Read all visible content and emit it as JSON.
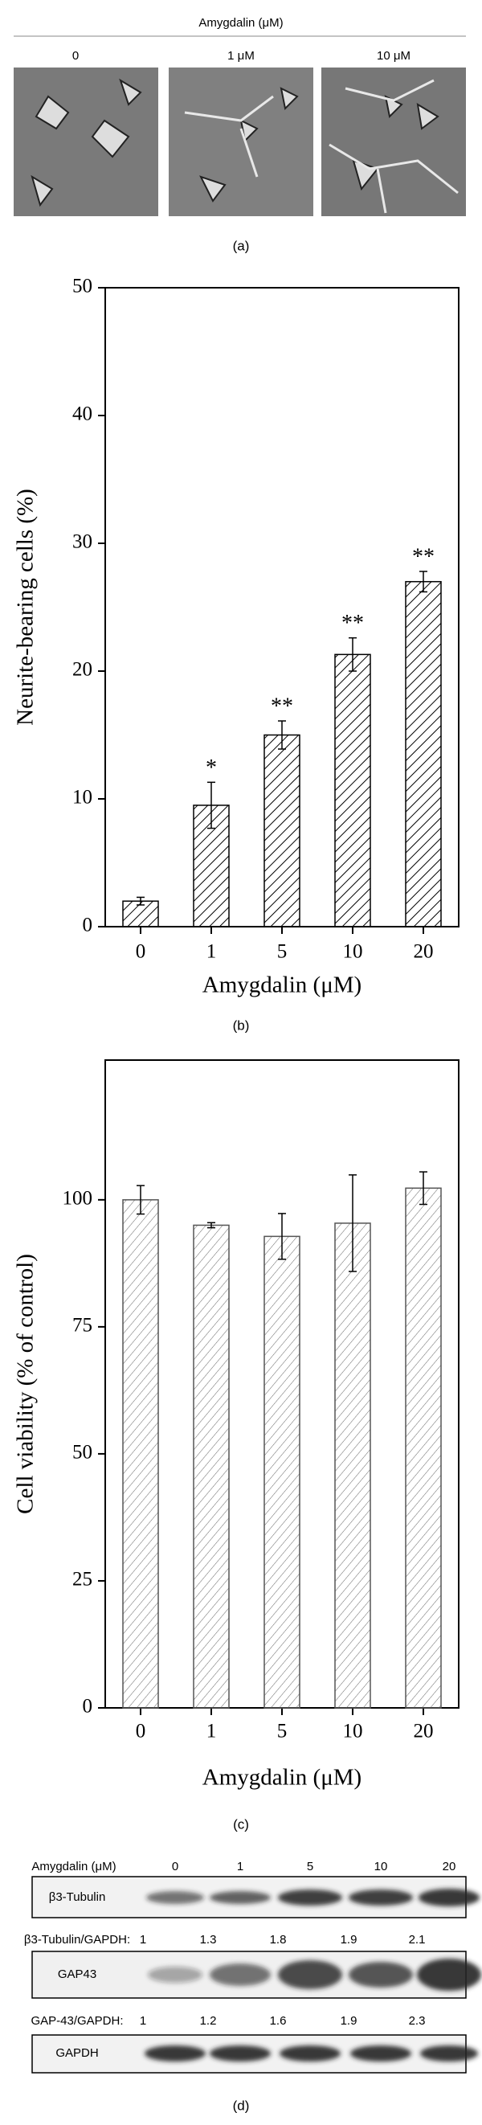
{
  "panel_a": {
    "title": "Amygdalin (μM)",
    "labels": [
      "0",
      "1 μM",
      "10 μM"
    ],
    "caption": "(a)"
  },
  "chart_data": [
    {
      "type": "bar",
      "caption": "(b)",
      "y_label": "Neurite-bearing cells (%)",
      "x_label": "Amygdalin (μM)",
      "categories": [
        "0",
        "1",
        "5",
        "10",
        "20"
      ],
      "values": [
        2,
        9.5,
        15,
        21.3,
        27
      ],
      "errors": [
        0.3,
        1.8,
        1.1,
        1.3,
        0.8
      ],
      "annotations": [
        null,
        "*",
        "**",
        "**",
        "**"
      ],
      "color": "#000000",
      "ylim": [
        0,
        50
      ],
      "yticks": [
        0,
        10,
        20,
        30,
        40,
        50
      ]
    },
    {
      "type": "bar",
      "caption": "(c)",
      "y_label": "Cell viability (% of control)",
      "x_label": "Amygdalin (μM)",
      "categories": [
        "0",
        "1",
        "5",
        "10",
        "20"
      ],
      "values": [
        100,
        95,
        92.8,
        95.4,
        102.3
      ],
      "errors": [
        2.8,
        0.5,
        4.5,
        9.5,
        3.2
      ],
      "color": "#555555",
      "ylim": [
        0,
        127.5
      ],
      "yticks": [
        0,
        25,
        50,
        75,
        100
      ]
    }
  ],
  "panel_d": {
    "title": "Amygdalin (μM)",
    "lanes": [
      "0",
      "1",
      "5",
      "10",
      "20"
    ],
    "blot_1": "β3-Tubulin",
    "ratio_1_label": "β3-Tubulin/GAPDH:",
    "ratio_1": [
      "1",
      "1.3",
      "1.8",
      "1.9",
      "2.1"
    ],
    "blot_2": "GAP43",
    "ratio_2_label": "GAP-43/GAPDH:",
    "ratio_2": [
      "1",
      "1.2",
      "1.6",
      "1.9",
      "2.3"
    ],
    "blot_3": "GAPDH",
    "caption": "(d)"
  }
}
